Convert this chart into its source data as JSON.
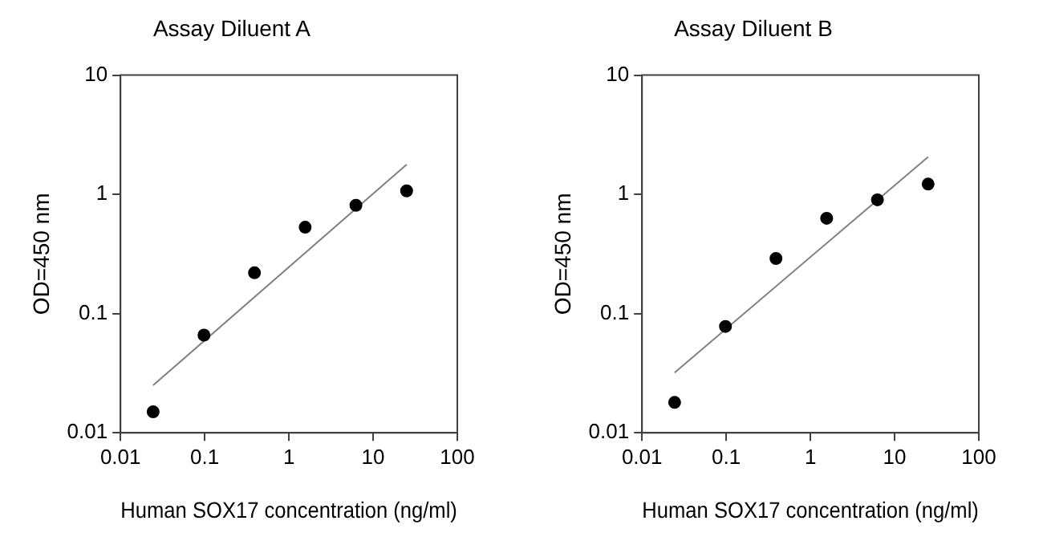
{
  "chart_data": [
    {
      "type": "scatter",
      "title": "Assay Diluent A",
      "xlabel": "Human SOX17 concentration (ng/ml)",
      "ylabel": "OD=450 nm",
      "log": "xy",
      "grid": false,
      "legend": false,
      "xlim": [
        0.01,
        100
      ],
      "ylim": [
        0.01,
        10
      ],
      "xticks": [
        0.01,
        0.1,
        1,
        10,
        100
      ],
      "yticks": [
        0.01,
        0.1,
        1,
        10
      ],
      "x": [
        0.0244,
        0.098,
        0.39,
        1.56,
        6.25,
        25
      ],
      "series": [
        {
          "color": "#000000",
          "marker": "circle",
          "values": [
            0.015,
            0.066,
            0.22,
            0.53,
            0.81,
            1.07
          ]
        },
        {
          "type": "line",
          "color": "#808080",
          "marker": "none",
          "line_style": "solid",
          "values": [
            0.025,
            null,
            null,
            null,
            null,
            1.78
          ]
        }
      ]
    },
    {
      "type": "scatter",
      "title": "Assay Diluent B",
      "xlabel": "Human SOX17 concentration (ng/ml)",
      "ylabel": "OD=450 nm",
      "log": "xy",
      "grid": false,
      "legend": false,
      "xlim": [
        0.01,
        100
      ],
      "ylim": [
        0.01,
        10
      ],
      "xticks": [
        0.01,
        0.1,
        1,
        10,
        100
      ],
      "yticks": [
        0.01,
        0.1,
        1,
        10
      ],
      "x": [
        0.0244,
        0.098,
        0.39,
        1.56,
        6.25,
        25
      ],
      "series": [
        {
          "color": "#000000",
          "marker": "circle",
          "values": [
            0.018,
            0.078,
            0.29,
            0.63,
            0.9,
            1.22
          ]
        },
        {
          "type": "line",
          "color": "#808080",
          "marker": "none",
          "line_style": "solid",
          "values": [
            0.032,
            null,
            null,
            null,
            null,
            2.06
          ]
        }
      ]
    }
  ]
}
